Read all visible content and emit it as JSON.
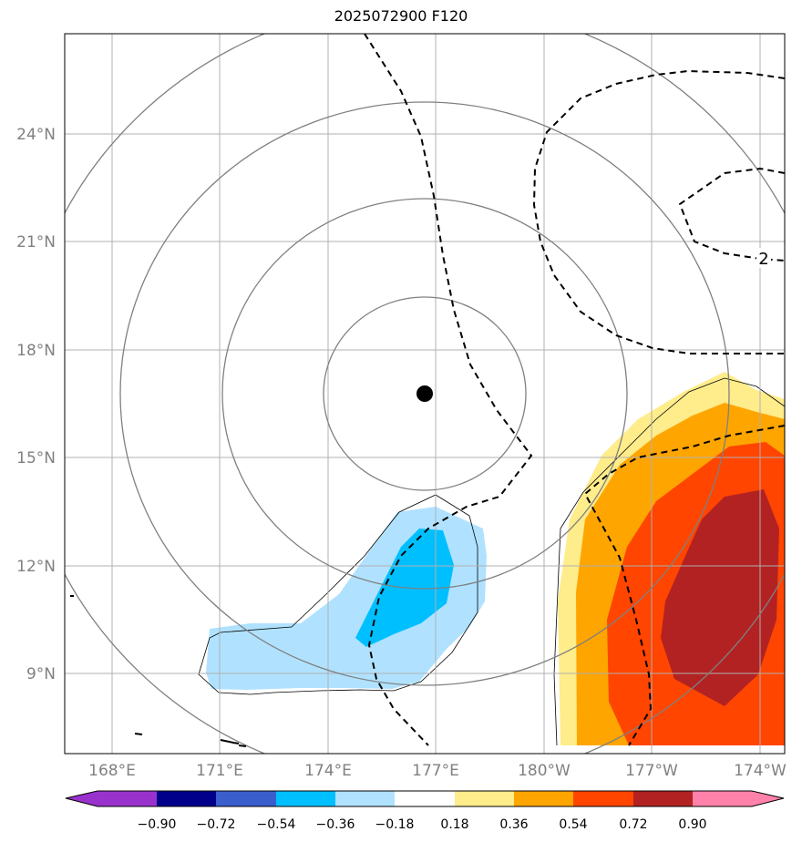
{
  "title": "2025072900 F120",
  "lon_ticks": [
    "168°E",
    "171°E",
    "174°E",
    "177°E",
    "180°W",
    "177°W",
    "174°W"
  ],
  "lat_ticks": [
    "24°N",
    "21°N",
    "18°N",
    "15°N",
    "12°N",
    "9°N"
  ],
  "contour_label": "2",
  "colorbar": {
    "levels": [
      "−0.90",
      "−0.72",
      "−0.54",
      "−0.36",
      "−0.18",
      "0.18",
      "0.36",
      "0.54",
      "0.72",
      "0.90"
    ],
    "colors": [
      "#9932cc",
      "#00008b",
      "#3a5fcd",
      "#00bfff",
      "#b0e2ff",
      "#ffffff",
      "#ffec8b",
      "#ffa500",
      "#ff4500",
      "#b22222",
      "#ff82ab"
    ]
  },
  "fill_colors": {
    "neg_light": "#b0e2ff",
    "neg_mid": "#00bfff",
    "pos_light": "#ffec8b",
    "pos_mid": "#ffa500",
    "pos_high": "#ff4500",
    "pos_max": "#b22222"
  },
  "center_marker": {
    "lon": "176.7°E",
    "lat": "16.8°N"
  }
}
